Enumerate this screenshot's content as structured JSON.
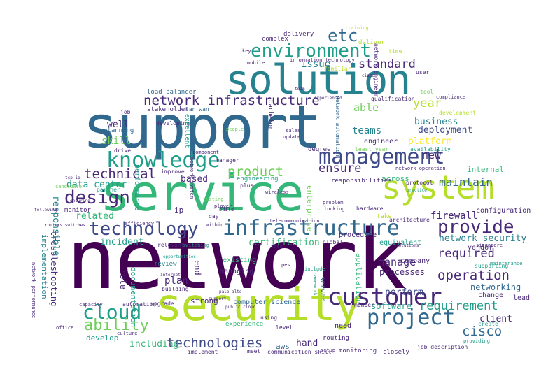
{
  "palette": {
    "deep_purple": "#440154",
    "indigo": "#482878",
    "blue": "#3e4989",
    "steel": "#31688e",
    "teal": "#26828e",
    "green_teal": "#1f9e89",
    "green": "#35b779",
    "light_green": "#6ece58",
    "lime": "#b5de2b",
    "yellow": "#fde725"
  },
  "words": [
    {
      "text": "network",
      "c": "deep_purple"
    },
    {
      "text": "support",
      "c": "steel"
    },
    {
      "text": "service",
      "c": "green"
    },
    {
      "text": "security",
      "c": "lime"
    },
    {
      "text": "solution",
      "c": "teal"
    },
    {
      "text": "system",
      "c": "lime"
    },
    {
      "text": "management",
      "c": "blue"
    },
    {
      "text": "knowledge",
      "c": "green_teal"
    },
    {
      "text": "environment",
      "c": "green_teal"
    },
    {
      "text": "infrastructure",
      "c": "steel"
    },
    {
      "text": "technology",
      "c": "blue"
    },
    {
      "text": "customer",
      "c": "indigo"
    },
    {
      "text": "project",
      "c": "steel"
    },
    {
      "text": "provide",
      "c": "indigo"
    },
    {
      "text": "design",
      "c": "indigo"
    },
    {
      "text": "cloud",
      "c": "green_teal"
    },
    {
      "text": "ability",
      "c": "light_green"
    },
    {
      "text": "network infrastructure",
      "c": "indigo"
    },
    {
      "text": "technical",
      "c": "indigo"
    },
    {
      "text": "technologies",
      "c": "blue"
    },
    {
      "text": "operation",
      "c": "indigo"
    },
    {
      "text": "requirement",
      "c": "green_teal"
    },
    {
      "text": "product",
      "c": "light_green"
    },
    {
      "text": "ensure",
      "c": "indigo"
    },
    {
      "text": "etc",
      "c": "steel"
    },
    {
      "text": "standard",
      "c": "indigo"
    },
    {
      "text": "cisco",
      "c": "steel"
    },
    {
      "text": "required",
      "c": "indigo"
    },
    {
      "text": "year",
      "c": "lime"
    },
    {
      "text": "platform",
      "c": "yellow"
    },
    {
      "text": "maintain",
      "c": "steel"
    },
    {
      "text": "deployment",
      "c": "blue"
    },
    {
      "text": "business",
      "c": "teal"
    },
    {
      "text": "teams",
      "c": "teal"
    },
    {
      "text": "issue",
      "c": "teal"
    },
    {
      "text": "able",
      "c": "light_green"
    },
    {
      "text": "skill",
      "c": "light_green"
    },
    {
      "text": "well",
      "c": "indigo"
    },
    {
      "text": "data center",
      "c": "green_teal"
    },
    {
      "text": "related",
      "c": "green"
    },
    {
      "text": "based",
      "c": "indigo"
    },
    {
      "text": "incident",
      "c": "green_teal"
    },
    {
      "text": "certification",
      "c": "green"
    },
    {
      "text": "plan",
      "c": "indigo"
    },
    {
      "text": "manage",
      "c": "indigo"
    },
    {
      "text": "perform",
      "c": "blue"
    },
    {
      "text": "software",
      "c": "green_teal"
    },
    {
      "text": "client",
      "c": "indigo"
    },
    {
      "text": "networking",
      "c": "steel"
    },
    {
      "text": "firewall",
      "c": "indigo"
    },
    {
      "text": "network security",
      "c": "teal"
    },
    {
      "text": "including",
      "c": "green"
    },
    {
      "text": "hand",
      "c": "indigo"
    },
    {
      "text": "configuration",
      "c": "indigo"
    },
    {
      "text": "internal",
      "c": "green"
    },
    {
      "text": "across",
      "c": "green"
    },
    {
      "text": "new",
      "c": "indigo"
    },
    {
      "text": "engineer",
      "c": "indigo"
    },
    {
      "text": "vendor",
      "c": "indigo"
    },
    {
      "text": "processes",
      "c": "indigo"
    },
    {
      "text": "company",
      "c": "indigo"
    },
    {
      "text": "role",
      "c": "indigo"
    },
    {
      "text": "end",
      "c": "indigo"
    },
    {
      "text": "responsibilities",
      "c": "indigo"
    },
    {
      "text": "lead",
      "c": "indigo"
    },
    {
      "text": "change",
      "c": "indigo"
    },
    {
      "text": "develop",
      "c": "green_teal"
    },
    {
      "text": "implementation",
      "c": "teal"
    },
    {
      "text": "troubleshooting",
      "c": "indigo"
    },
    {
      "text": "responsible",
      "c": "teal"
    },
    {
      "text": "application",
      "c": "green"
    },
    {
      "text": "enterprise",
      "c": "light_green"
    },
    {
      "text": "documentation",
      "c": "green_teal"
    },
    {
      "text": "strong",
      "c": "indigo"
    },
    {
      "text": "computer science",
      "c": "steel"
    },
    {
      "text": "aws",
      "c": "steel"
    },
    {
      "text": "experience",
      "c": "green"
    },
    {
      "text": "server",
      "c": "steel"
    },
    {
      "text": "need",
      "c": "indigo"
    },
    {
      "text": "equivalent",
      "c": "green_teal"
    },
    {
      "text": "procedure",
      "c": "indigo"
    },
    {
      "text": "ip",
      "c": "indigo"
    },
    {
      "text": "monitor",
      "c": "indigo"
    },
    {
      "text": "performance",
      "c": "green_teal"
    },
    {
      "text": "load balancer",
      "c": "steel"
    },
    {
      "text": "stakeholder",
      "c": "indigo"
    },
    {
      "text": "planning",
      "c": "steel"
    },
    {
      "text": "developing",
      "c": "indigo"
    },
    {
      "text": "managing",
      "c": "indigo"
    },
    {
      "text": "existing",
      "c": "green"
    },
    {
      "text": "review",
      "c": "teal"
    },
    {
      "text": "communication skill",
      "c": "indigo"
    },
    {
      "text": "routing",
      "c": "indigo"
    },
    {
      "text": "monitoring",
      "c": "indigo"
    },
    {
      "text": "delivery",
      "c": "indigo"
    },
    {
      "text": "complex",
      "c": "indigo"
    },
    {
      "text": "deliver",
      "c": "lime"
    },
    {
      "text": "information technology",
      "c": "indigo"
    },
    {
      "text": "familiar",
      "c": "lime"
    },
    {
      "text": "qualification",
      "c": "indigo"
    },
    {
      "text": "tool",
      "c": "light_green"
    },
    {
      "text": "bachelor",
      "c": "indigo"
    },
    {
      "text": "degree",
      "c": "indigo"
    },
    {
      "text": "least year",
      "c": "light_green"
    },
    {
      "text": "availability",
      "c": "green_teal"
    },
    {
      "text": "protocol",
      "c": "indigo"
    },
    {
      "text": "hardware",
      "c": "indigo"
    },
    {
      "text": "take",
      "c": "lime"
    },
    {
      "text": "architecture",
      "c": "indigo"
    },
    {
      "text": "global",
      "c": "indigo"
    },
    {
      "text": "telecommunication",
      "c": "indigo"
    },
    {
      "text": "wireless",
      "c": "indigo"
    },
    {
      "text": "plus",
      "c": "indigo"
    },
    {
      "text": "engineering",
      "c": "green_teal"
    },
    {
      "text": "manager",
      "c": "indigo"
    },
    {
      "text": "lan wan",
      "c": "steel"
    },
    {
      "text": "job",
      "c": "indigo"
    },
    {
      "text": "drive",
      "c": "indigo"
    },
    {
      "text": "improve",
      "c": "indigo"
    },
    {
      "text": "partner",
      "c": "green_teal"
    },
    {
      "text": "relevant",
      "c": "indigo"
    },
    {
      "text": "building",
      "c": "indigo"
    },
    {
      "text": "upgrade",
      "c": "indigo"
    },
    {
      "text": "automation",
      "c": "indigo"
    },
    {
      "text": "capacity",
      "c": "indigo"
    },
    {
      "text": "implement",
      "c": "indigo"
    },
    {
      "text": "meet",
      "c": "indigo"
    },
    {
      "text": "level",
      "c": "indigo"
    },
    {
      "text": "using",
      "c": "indigo"
    },
    {
      "text": "member",
      "c": "indigo"
    },
    {
      "text": "closely",
      "c": "indigo"
    },
    {
      "text": "setup",
      "c": "indigo"
    },
    {
      "text": "job description",
      "c": "indigo"
    },
    {
      "text": "providing",
      "c": "green_teal"
    },
    {
      "text": "create",
      "c": "green_teal"
    },
    {
      "text": "maintenance",
      "c": "green_teal"
    },
    {
      "text": "supporting",
      "c": "green_teal"
    },
    {
      "text": "singapore",
      "c": "indigo"
    },
    {
      "text": "compliance",
      "c": "indigo"
    },
    {
      "text": "development",
      "c": "lime"
    },
    {
      "text": "key",
      "c": "indigo"
    },
    {
      "text": "training",
      "c": "lime"
    },
    {
      "text": "user",
      "c": "indigo"
    },
    {
      "text": "time",
      "c": "lime"
    },
    {
      "text": "mobile",
      "c": "indigo"
    },
    {
      "text": "switching",
      "c": "teal"
    },
    {
      "text": "testing",
      "c": "light_green"
    },
    {
      "text": "player",
      "c": "indigo"
    },
    {
      "text": "efficiency",
      "c": "indigo"
    },
    {
      "text": "office",
      "c": "indigo"
    },
    {
      "text": "culture",
      "c": "indigo"
    },
    {
      "text": "pes",
      "c": "indigo"
    },
    {
      "text": "network engineer",
      "c": "indigo"
    },
    {
      "text": "network automation",
      "c": "steel"
    },
    {
      "text": "network system",
      "c": "indigo"
    },
    {
      "text": "network operation",
      "c": "indigo"
    },
    {
      "text": "network performance",
      "c": "indigo"
    },
    {
      "text": "excellent",
      "c": "green_teal"
    },
    {
      "text": "component",
      "c": "indigo"
    },
    {
      "text": "people",
      "c": "light_green"
    },
    {
      "text": "sales",
      "c": "indigo"
    },
    {
      "text": "update",
      "c": "indigo"
    },
    {
      "text": "problem",
      "c": "indigo"
    },
    {
      "text": "looking",
      "c": "indigo"
    },
    {
      "text": "include",
      "c": "green_teal"
    },
    {
      "text": "within",
      "c": "indigo"
    },
    {
      "text": "day",
      "c": "indigo"
    },
    {
      "text": "build",
      "c": "indigo"
    },
    {
      "text": "task",
      "c": "indigo"
    },
    {
      "text": "framework",
      "c": "green_teal"
    },
    {
      "text": "ensuring",
      "c": "indigo"
    },
    {
      "text": "experienced",
      "c": "indigo"
    },
    {
      "text": "team",
      "c": "indigo"
    },
    {
      "text": "cisco",
      "c": "indigo"
    },
    {
      "text": "practice",
      "c": "green_teal"
    },
    {
      "text": "solutions",
      "c": "indigo"
    },
    {
      "text": "tcp ip",
      "c": "indigo"
    },
    {
      "text": "routers switches",
      "c": "indigo"
    },
    {
      "text": "candidate",
      "c": "light_green"
    },
    {
      "text": "palo alto",
      "c": "indigo"
    },
    {
      "text": "public cloud",
      "c": "indigo"
    },
    {
      "text": "internet",
      "c": "indigo"
    },
    {
      "text": "opportunities",
      "c": "green_teal"
    },
    {
      "text": "following",
      "c": "indigo"
    },
    {
      "text": "support",
      "c": "indigo"
    }
  ]
}
